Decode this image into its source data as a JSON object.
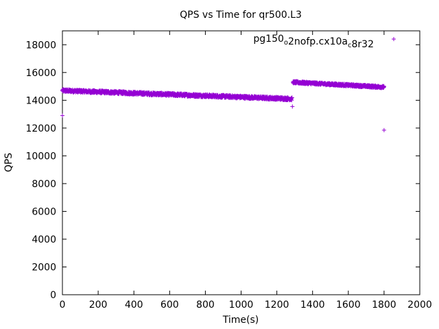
{
  "chart_data": {
    "type": "scatter",
    "title": "QPS vs Time for qr500.L3",
    "xlabel": "Time(s)",
    "ylabel": "QPS",
    "xlim": [
      0,
      2000
    ],
    "ylim": [
      0,
      19000
    ],
    "xticks": [
      0,
      200,
      400,
      600,
      800,
      1000,
      1200,
      1400,
      1600,
      1800,
      2000
    ],
    "yticks": [
      0,
      2000,
      4000,
      6000,
      8000,
      10000,
      12000,
      14000,
      16000,
      18000
    ],
    "grid": false,
    "legend_position": "top-right",
    "legend": {
      "parts": [
        {
          "text": "pg150",
          "sub": false
        },
        {
          "text": "o",
          "sub": true
        },
        {
          "text": "2nofp.cx10a",
          "sub": false
        },
        {
          "text": "c",
          "sub": true
        },
        {
          "text": "8r32",
          "sub": false
        }
      ]
    },
    "marker": "+",
    "color": "#9400d3",
    "segments": [
      {
        "x_start": 0,
        "x_end": 1285,
        "y_start": 14700,
        "y_end": 14100,
        "noise": 100
      },
      {
        "x_start": 1290,
        "x_end": 1800,
        "y_start": 15300,
        "y_end": 14950,
        "noise": 80
      }
    ],
    "outliers": [
      {
        "x": 0,
        "y": 12900
      },
      {
        "x": 1287,
        "y": 13550
      },
      {
        "x": 1300,
        "y": 15250
      },
      {
        "x": 1800,
        "y": 11850
      }
    ]
  }
}
